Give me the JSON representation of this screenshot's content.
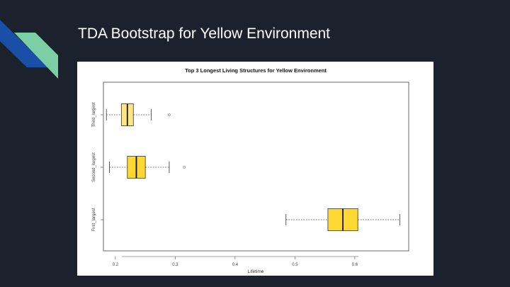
{
  "slide": {
    "title": "TDA Bootstrap for Yellow Environment"
  },
  "colors": {
    "background": "#1c222d",
    "accent_dark_blue": "#1a4fa8",
    "accent_teal": "#7ccfa5",
    "box_fill": "#ffd833",
    "box_fill_light": "#ffe680"
  },
  "chart_data": {
    "type": "boxplot",
    "orientation": "horizontal",
    "title": "Top 3 Longest Living Structures for Yellow Environment",
    "xlabel": "Lifetime",
    "ylabel": "",
    "xlim": [
      0.18,
      0.69
    ],
    "xticks": [
      0.2,
      0.3,
      0.4,
      0.5,
      0.6
    ],
    "xtick_labels": [
      "0.2",
      "0.3",
      "0.4",
      "0.5",
      "0.6"
    ],
    "grid": false,
    "series": [
      {
        "name": "Third_largest",
        "whisker_low": 0.185,
        "q1": 0.21,
        "median": 0.22,
        "q3": 0.23,
        "whisker_high": 0.26,
        "outliers": [
          0.29
        ],
        "fill": "#ffe680"
      },
      {
        "name": "Second_largest",
        "whisker_low": 0.19,
        "q1": 0.22,
        "median": 0.235,
        "q3": 0.25,
        "whisker_high": 0.29,
        "outliers": [
          0.315
        ],
        "fill": "#ffd833"
      },
      {
        "name": "First_largest",
        "whisker_low": 0.485,
        "q1": 0.555,
        "median": 0.58,
        "q3": 0.605,
        "whisker_high": 0.675,
        "outliers": [],
        "fill": "#ffd833"
      }
    ]
  }
}
